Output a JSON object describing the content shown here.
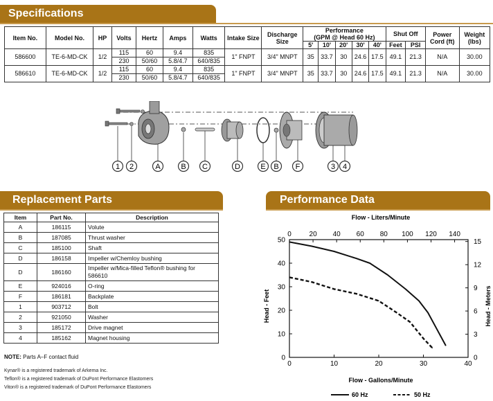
{
  "colors": {
    "banner": "#a97417",
    "banner_light": "#c89a4c"
  },
  "specifications": {
    "title": "Specifications",
    "headers": {
      "item": "Item No.",
      "model": "Model No.",
      "hp": "HP",
      "volts": "Volts",
      "hertz": "Hertz",
      "amps": "Amps",
      "watts": "Watts",
      "intake": "Intake Size",
      "discharge": "Discharge Size",
      "performance": "Performance",
      "performance_sub": "(GPM @ Head 60 Hz)",
      "shutoff": "Shut Off",
      "feet": "Feet",
      "psi": "PSI",
      "power_cord": "Power Cord (ft)",
      "weight": "Weight (lbs)"
    },
    "heads": [
      "5'",
      "10'",
      "20'",
      "30'",
      "40'"
    ],
    "rows": [
      {
        "item": "586600",
        "model": "TE-6-MD-CK",
        "hp": "1/2",
        "volts": [
          "115",
          "230"
        ],
        "hertz": [
          "60",
          "50/60"
        ],
        "amps": [
          "9.4",
          "5.8/4.7"
        ],
        "watts": [
          "835",
          "640/835"
        ],
        "intake": "1\" FNPT",
        "discharge": "3/4\" MNPT",
        "gpm": [
          "35",
          "33.7",
          "30",
          "24.6",
          "17.5"
        ],
        "feet": "49.1",
        "psi": "21.3",
        "cord": "N/A",
        "weight": "30.00"
      },
      {
        "item": "586610",
        "model": "TE-6-MD-CK",
        "hp": "1/2",
        "volts": [
          "115",
          "230"
        ],
        "hertz": [
          "60",
          "50/60"
        ],
        "amps": [
          "9.4",
          "5.8/4.7"
        ],
        "watts": [
          "835",
          "640/835"
        ],
        "intake": "1\" FNPT",
        "discharge": "3/4\" MNPT",
        "gpm": [
          "35",
          "33.7",
          "30",
          "24.6",
          "17.5"
        ],
        "feet": "49.1",
        "psi": "21.3",
        "cord": "N/A",
        "weight": "30.00"
      }
    ]
  },
  "diagram_labels": [
    "1",
    "2",
    "A",
    "B",
    "C",
    "D",
    "E",
    "B",
    "F",
    "3",
    "4"
  ],
  "replacement_parts": {
    "title": "Replacement Parts",
    "headers": {
      "item": "Item",
      "part": "Part No.",
      "description": "Description"
    },
    "rows": [
      {
        "item": "A",
        "part": "186115",
        "description": "Volute"
      },
      {
        "item": "B",
        "part": "187085",
        "description": "Thrust washer"
      },
      {
        "item": "C",
        "part": "185100",
        "description": "Shaft"
      },
      {
        "item": "D",
        "part": "186158",
        "description": "Impeller w/Chemloy bushing"
      },
      {
        "item": "D",
        "part": "186160",
        "description": "Impeller w/Mica-filled Teflon® bushing for 586610"
      },
      {
        "item": "E",
        "part": "924016",
        "description": "O-ring"
      },
      {
        "item": "F",
        "part": "186181",
        "description": "Backplate"
      },
      {
        "item": "1",
        "part": "903712",
        "description": "Bolt"
      },
      {
        "item": "2",
        "part": "921050",
        "description": "Washer"
      },
      {
        "item": "3",
        "part": "185172",
        "description": "Drive magnet"
      },
      {
        "item": "4",
        "part": "185162",
        "description": "Magnet housing"
      }
    ],
    "note_label": "NOTE:",
    "note_text": " Parts A–F contact fluid"
  },
  "trademarks": [
    "Kynar® is a registered trademark of Arkema Inc.",
    "Teflon® is a registered trademark of DuPont Performance Elastomers",
    "Viton® is a registered trademark of DuPont Performance Elastomers"
  ],
  "performance": {
    "title": "Performance Data",
    "chart_data": {
      "type": "line",
      "title": "",
      "xlabel": "Flow - Gallons/Minute",
      "x2label": "Flow - Liters/Minute",
      "ylabel": "Head - Feet",
      "y2label": "Head - Meters",
      "xlim": [
        0,
        40
      ],
      "ylim": [
        0,
        50
      ],
      "x2lim": [
        0,
        151.4
      ],
      "y2lim": [
        0,
        15.24
      ],
      "xticks": [
        0,
        10,
        20,
        30,
        40
      ],
      "yticks": [
        0,
        10,
        20,
        30,
        40,
        50
      ],
      "x2ticks": [
        0,
        20,
        40,
        60,
        80,
        100,
        120,
        140
      ],
      "y2ticks": [
        0,
        3,
        6,
        9,
        12,
        15
      ],
      "grid": false,
      "legend_position": "bottom",
      "series": [
        {
          "name": "60 Hz",
          "style": "solid",
          "x": [
            0,
            5,
            10,
            15,
            18,
            22,
            26,
            29,
            31,
            33,
            35
          ],
          "y": [
            49,
            47.2,
            45,
            42,
            40,
            35,
            29,
            24,
            19,
            12,
            5
          ]
        },
        {
          "name": "50 Hz",
          "style": "dashed",
          "x": [
            0,
            5,
            10,
            15,
            20,
            24,
            27,
            30,
            32
          ],
          "y": [
            34,
            32,
            29,
            27,
            24,
            19,
            15,
            8,
            4
          ]
        }
      ]
    }
  }
}
